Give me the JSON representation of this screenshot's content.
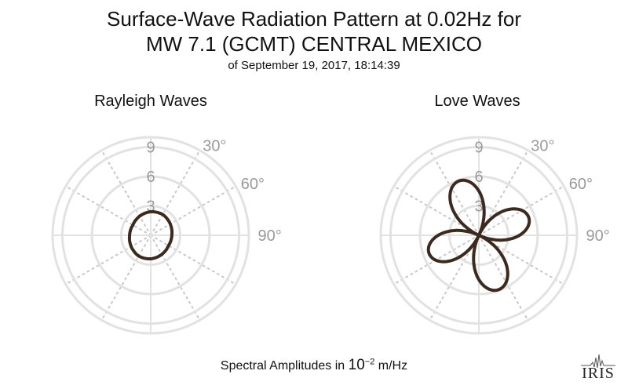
{
  "title_line1": "Surface-Wave Radiation Pattern at 0.02Hz for",
  "title_line2": "MW 7.1 (GCMT) CENTRAL MEXICO",
  "subtitle": "of September 19, 2017, 18:14:39",
  "footer": {
    "prefix": "Spectral Amplitudes in ",
    "base": "10",
    "exponent": "−2",
    "unit": " m/Hz"
  },
  "logo_text": "IRIS",
  "colors": {
    "grid": "#e2e2e2",
    "curve": "#3d2a1e",
    "tick_labels": "#9a9a9a"
  },
  "chart_data": [
    {
      "type": "polar",
      "title": "Rayleigh Waves",
      "radial_ticks": [
        3,
        6,
        9
      ],
      "rlim": [
        0,
        10
      ],
      "angle_ticks": [
        "30°",
        "60°",
        "90°"
      ],
      "theta_deg": [
        0,
        30,
        60,
        90,
        120,
        150,
        180,
        210,
        240,
        270,
        300,
        330,
        360
      ],
      "r": [
        2.4,
        2.45,
        2.3,
        2.15,
        2.1,
        2.25,
        2.4,
        2.45,
        2.3,
        2.15,
        2.1,
        2.25,
        2.4
      ]
    },
    {
      "type": "polar",
      "title": "Love Waves",
      "radial_ticks": [
        3,
        6,
        9
      ],
      "rlim": [
        0,
        10
      ],
      "angle_ticks": [
        "30°",
        "60°",
        "90°"
      ],
      "lobe_directions_deg": [
        -20,
        70,
        160,
        250
      ],
      "lobe_peaks": [
        5.9,
        5.4,
        5.9,
        5.4
      ]
    }
  ]
}
